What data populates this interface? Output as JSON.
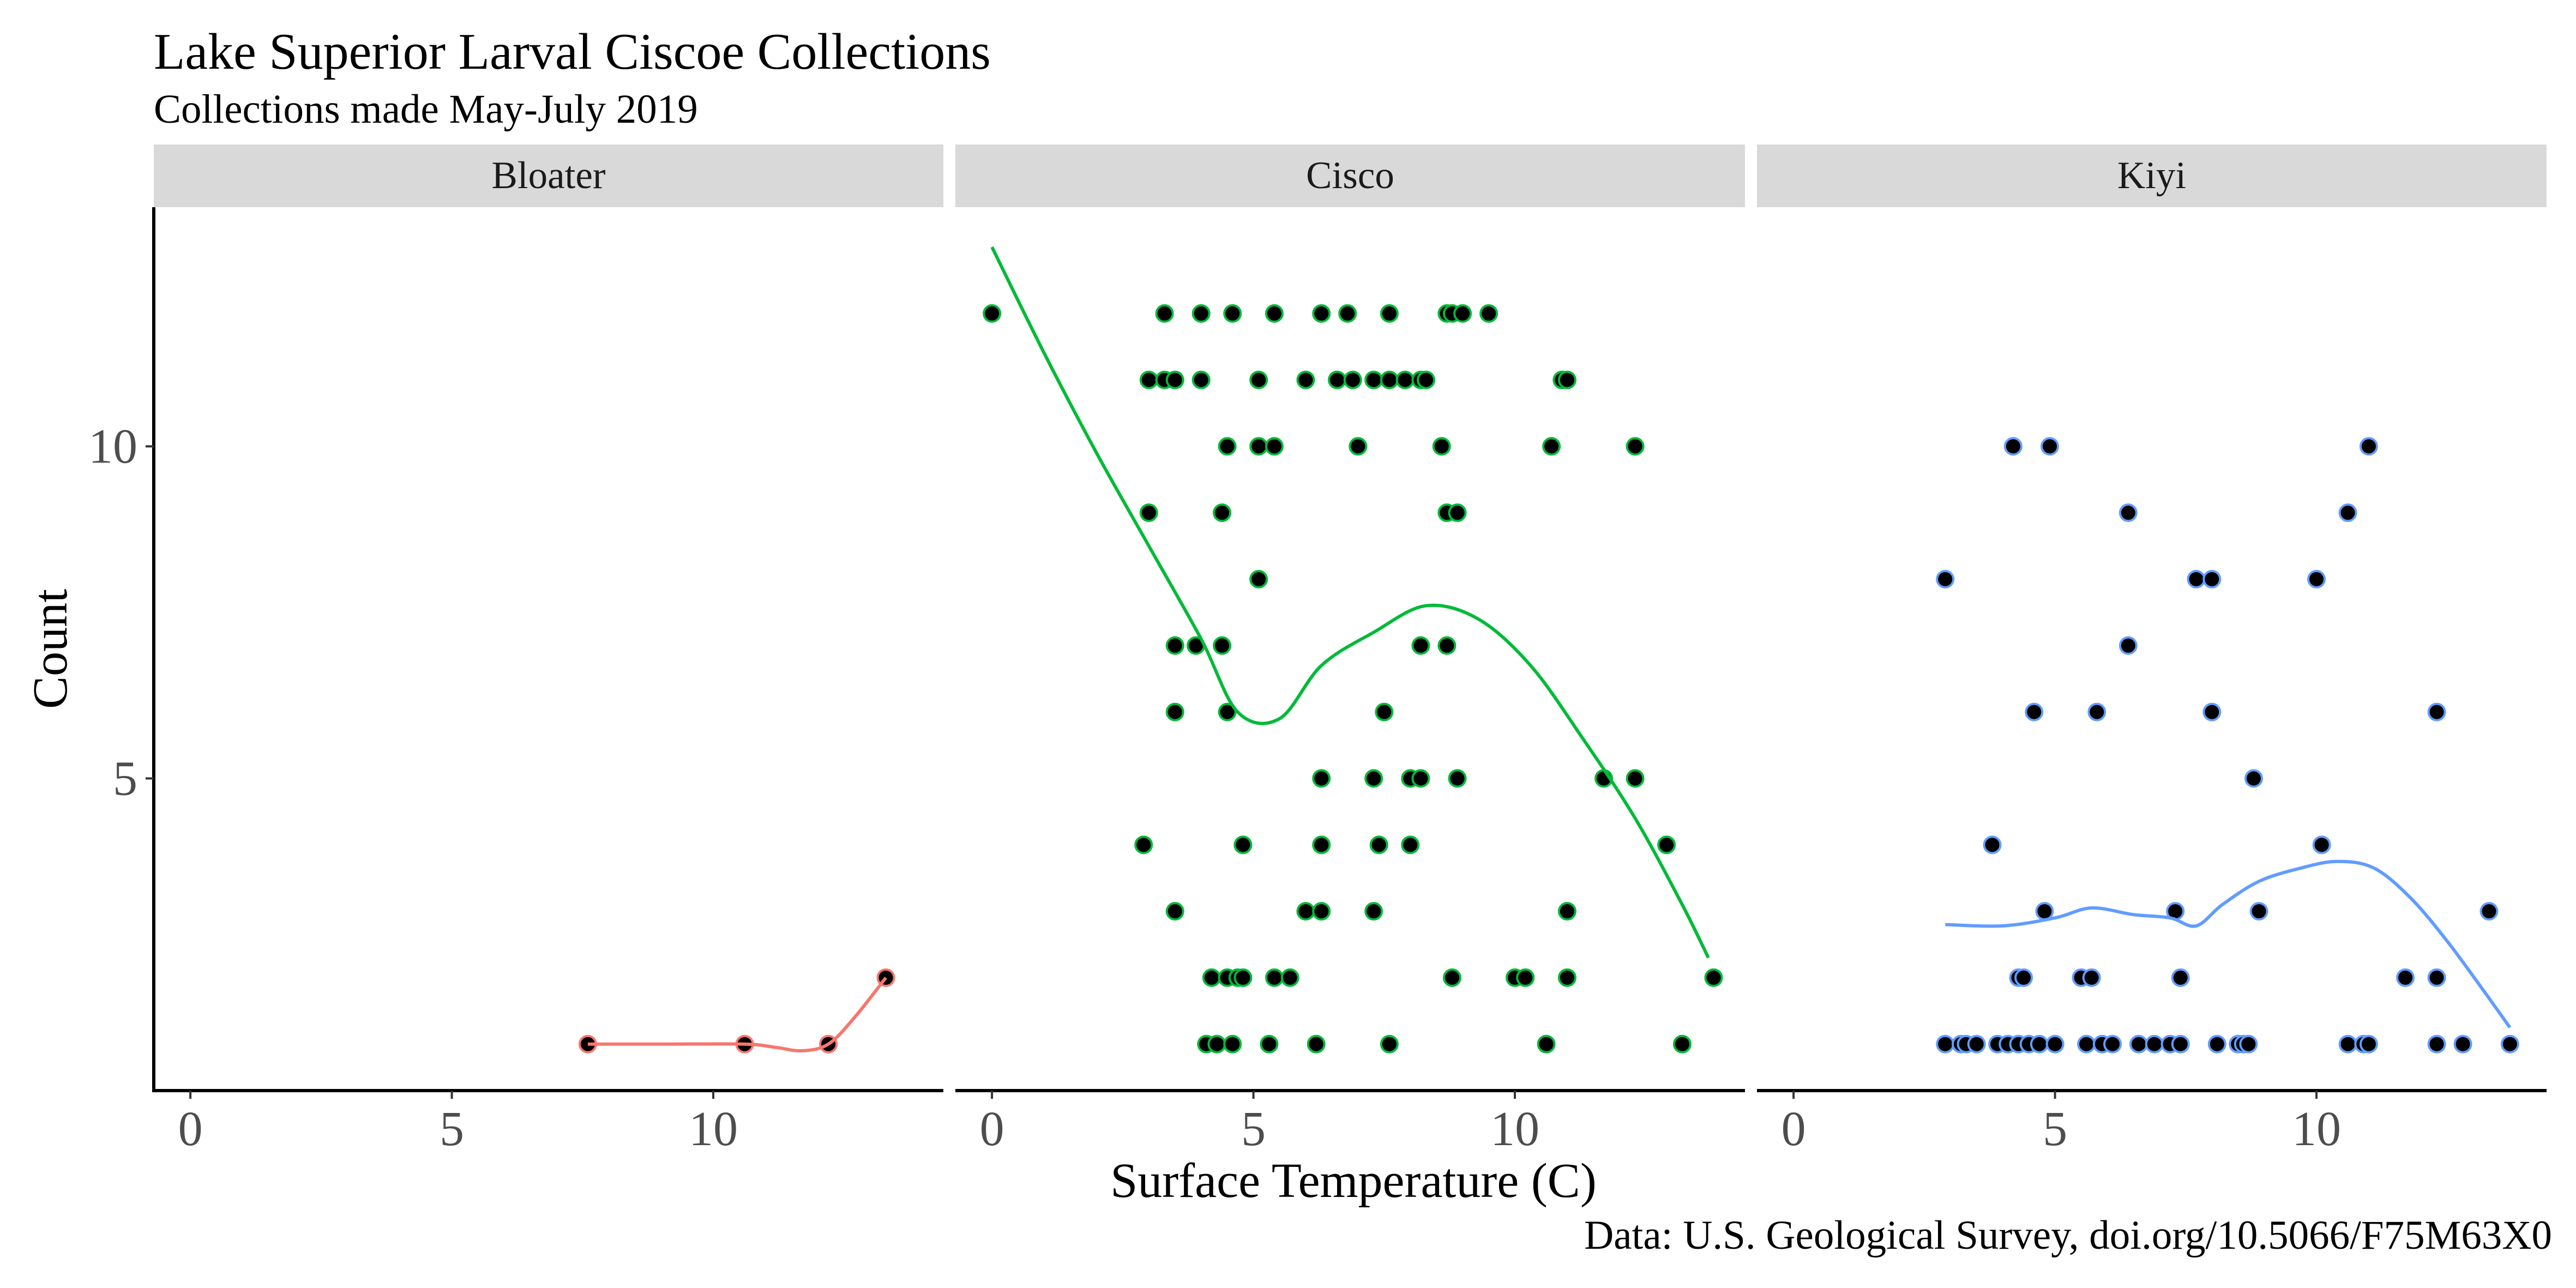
{
  "chart_data": {
    "type": "scatter",
    "title": "Lake Superior Larval Ciscoe Collections",
    "subtitle": "Collections made May-July 2019",
    "caption": "Data: U.S. Geological Survey, doi.org/10.5066/F75M63X0",
    "xlabel": "Surface Temperature (C)",
    "ylabel": "Count",
    "xlim": [
      -0.7,
      14.4
    ],
    "ylim": [
      0.3,
      13.6
    ],
    "xticks": [
      0,
      5,
      10
    ],
    "yticks": [
      5,
      10
    ],
    "grid": false,
    "legend": "none",
    "facets": [
      {
        "name": "Bloater",
        "color": "#F8766D",
        "points": [
          [
            7.6,
            1
          ],
          [
            10.6,
            1
          ],
          [
            12.2,
            1
          ],
          [
            13.3,
            2
          ]
        ],
        "smooth": [
          [
            7.6,
            1
          ],
          [
            9.0,
            1
          ],
          [
            10.6,
            1
          ],
          [
            11.2,
            0.95
          ],
          [
            11.7,
            0.9
          ],
          [
            12.2,
            1
          ],
          [
            12.7,
            1.4
          ],
          [
            13.3,
            2
          ]
        ]
      },
      {
        "name": "Cisco",
        "color": "#00BA38",
        "points": [
          [
            0,
            12
          ],
          [
            3.3,
            12
          ],
          [
            4.0,
            12
          ],
          [
            4.6,
            12
          ],
          [
            5.4,
            12
          ],
          [
            6.3,
            12
          ],
          [
            6.8,
            12
          ],
          [
            7.6,
            12
          ],
          [
            8.7,
            12
          ],
          [
            8.8,
            12
          ],
          [
            9.0,
            12
          ],
          [
            9.5,
            12
          ],
          [
            3.0,
            11
          ],
          [
            3.3,
            11
          ],
          [
            3.5,
            11
          ],
          [
            4.0,
            11
          ],
          [
            5.1,
            11
          ],
          [
            6.0,
            11
          ],
          [
            6.6,
            11
          ],
          [
            6.9,
            11
          ],
          [
            7.3,
            11
          ],
          [
            7.6,
            11
          ],
          [
            7.9,
            11
          ],
          [
            8.2,
            11
          ],
          [
            8.3,
            11
          ],
          [
            10.9,
            11
          ],
          [
            11.0,
            11
          ],
          [
            4.5,
            10
          ],
          [
            5.1,
            10
          ],
          [
            5.4,
            10
          ],
          [
            7.0,
            10
          ],
          [
            8.6,
            10
          ],
          [
            10.7,
            10
          ],
          [
            12.3,
            10
          ],
          [
            3.0,
            9
          ],
          [
            4.4,
            9
          ],
          [
            8.7,
            9
          ],
          [
            8.9,
            9
          ],
          [
            5.1,
            8
          ],
          [
            3.5,
            7
          ],
          [
            3.9,
            7
          ],
          [
            4.4,
            7
          ],
          [
            8.2,
            7
          ],
          [
            8.7,
            7
          ],
          [
            3.5,
            6
          ],
          [
            4.5,
            6
          ],
          [
            7.5,
            6
          ],
          [
            6.3,
            5
          ],
          [
            7.3,
            5
          ],
          [
            8.0,
            5
          ],
          [
            8.2,
            5
          ],
          [
            8.9,
            5
          ],
          [
            11.7,
            5
          ],
          [
            12.3,
            5
          ],
          [
            2.9,
            4
          ],
          [
            4.8,
            4
          ],
          [
            6.3,
            4
          ],
          [
            7.4,
            4
          ],
          [
            8.0,
            4
          ],
          [
            12.9,
            4
          ],
          [
            3.5,
            3
          ],
          [
            6.0,
            3
          ],
          [
            6.3,
            3
          ],
          [
            7.3,
            3
          ],
          [
            11.0,
            3
          ],
          [
            4.2,
            2
          ],
          [
            4.5,
            2
          ],
          [
            4.7,
            2
          ],
          [
            4.8,
            2
          ],
          [
            5.4,
            2
          ],
          [
            5.7,
            2
          ],
          [
            8.8,
            2
          ],
          [
            10.0,
            2
          ],
          [
            10.2,
            2
          ],
          [
            11.0,
            2
          ],
          [
            13.8,
            2
          ],
          [
            4.1,
            1
          ],
          [
            4.3,
            1
          ],
          [
            4.6,
            1
          ],
          [
            5.3,
            1
          ],
          [
            6.2,
            1
          ],
          [
            7.6,
            1
          ],
          [
            10.6,
            1
          ],
          [
            13.2,
            1
          ]
        ],
        "smooth": [
          [
            0,
            13.0
          ],
          [
            1,
            11.4
          ],
          [
            2,
            9.9
          ],
          [
            3,
            8.5
          ],
          [
            4,
            7.1
          ],
          [
            4.7,
            6.0
          ],
          [
            5.5,
            5.9
          ],
          [
            6.3,
            6.7
          ],
          [
            7.3,
            7.2
          ],
          [
            8.3,
            7.6
          ],
          [
            9.3,
            7.4
          ],
          [
            10.3,
            6.7
          ],
          [
            11.3,
            5.6
          ],
          [
            12.3,
            4.4
          ],
          [
            13.2,
            3.1
          ],
          [
            13.7,
            2.3
          ]
        ]
      },
      {
        "name": "Kiyi",
        "color": "#619CFF",
        "points": [
          [
            4.2,
            10
          ],
          [
            4.9,
            10
          ],
          [
            11.0,
            10
          ],
          [
            6.4,
            9
          ],
          [
            10.6,
            9
          ],
          [
            2.9,
            8
          ],
          [
            7.7,
            8
          ],
          [
            8.0,
            8
          ],
          [
            10.0,
            8
          ],
          [
            6.4,
            7
          ],
          [
            4.6,
            6
          ],
          [
            5.8,
            6
          ],
          [
            8.0,
            6
          ],
          [
            12.3,
            6
          ],
          [
            8.8,
            5
          ],
          [
            3.8,
            4
          ],
          [
            10.1,
            4
          ],
          [
            4.8,
            3
          ],
          [
            7.3,
            3
          ],
          [
            8.9,
            3
          ],
          [
            13.3,
            3
          ],
          [
            4.3,
            2
          ],
          [
            4.4,
            2
          ],
          [
            5.5,
            2
          ],
          [
            5.7,
            2
          ],
          [
            7.4,
            2
          ],
          [
            11.7,
            2
          ],
          [
            12.3,
            2
          ],
          [
            2.9,
            1
          ],
          [
            3.2,
            1
          ],
          [
            3.3,
            1
          ],
          [
            3.5,
            1
          ],
          [
            3.9,
            1
          ],
          [
            4.1,
            1
          ],
          [
            4.3,
            1
          ],
          [
            4.5,
            1
          ],
          [
            4.7,
            1
          ],
          [
            5.0,
            1
          ],
          [
            5.6,
            1
          ],
          [
            5.9,
            1
          ],
          [
            6.1,
            1
          ],
          [
            6.6,
            1
          ],
          [
            6.9,
            1
          ],
          [
            7.2,
            1
          ],
          [
            7.4,
            1
          ],
          [
            8.1,
            1
          ],
          [
            8.5,
            1
          ],
          [
            8.6,
            1
          ],
          [
            8.7,
            1
          ],
          [
            10.6,
            1
          ],
          [
            10.9,
            1
          ],
          [
            11.0,
            1
          ],
          [
            12.3,
            1
          ],
          [
            12.8,
            1
          ],
          [
            13.7,
            1
          ]
        ],
        "smooth": [
          [
            2.9,
            2.8
          ],
          [
            4.0,
            2.78
          ],
          [
            5.0,
            2.9
          ],
          [
            5.7,
            3.05
          ],
          [
            6.5,
            2.95
          ],
          [
            7.2,
            2.9
          ],
          [
            7.7,
            2.78
          ],
          [
            8.2,
            3.1
          ],
          [
            8.9,
            3.45
          ],
          [
            9.7,
            3.65
          ],
          [
            10.4,
            3.75
          ],
          [
            11.1,
            3.65
          ],
          [
            11.8,
            3.2
          ],
          [
            12.5,
            2.55
          ],
          [
            13.2,
            1.8
          ],
          [
            13.7,
            1.25
          ]
        ]
      }
    ]
  }
}
